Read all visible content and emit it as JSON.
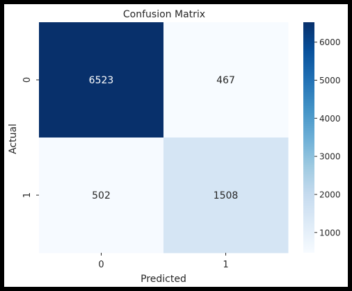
{
  "chart_data": {
    "type": "heatmap",
    "title": "Confusion Matrix",
    "xlabel": "Predicted",
    "ylabel": "Actual",
    "x_categories": [
      "0",
      "1"
    ],
    "y_categories": [
      "0",
      "1"
    ],
    "values": [
      [
        6523,
        467
      ],
      [
        502,
        1508
      ]
    ],
    "colorbar": {
      "ticks": [
        "1000",
        "2000",
        "3000",
        "4000",
        "5000",
        "6000"
      ],
      "min": 467,
      "max": 6523,
      "colormap": "Blues"
    },
    "cell_label_colors": {
      "dark": "#ffffff",
      "light": "#262626"
    }
  }
}
